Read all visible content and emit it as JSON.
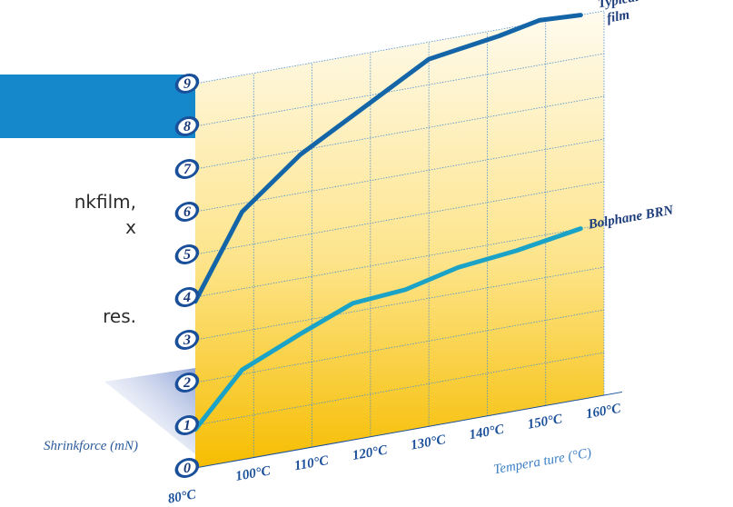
{
  "background_text": [
    "nkfilm,",
    "x",
    "res."
  ],
  "colors": {
    "banner": "#1588cc",
    "typical_film_line": "#1465a8",
    "bolphane_line": "#1aa3c6",
    "area_top": "#fff9e8",
    "area_bottom": "#f6bd00",
    "grid": "#4a8fd0",
    "tick_badge": "#1a4f9a"
  },
  "chart_data": {
    "type": "line",
    "title": "",
    "xlabel": "Tempera ture (°C)",
    "ylabel": "Shrinkforce (mN)",
    "categories": [
      "80°C",
      "100°C",
      "110°C",
      "120°C",
      "130°C",
      "140°C",
      "150°C",
      "160°C"
    ],
    "y_ticks": [
      "0",
      "1",
      "2",
      "3",
      "4",
      "5",
      "6",
      "7",
      "8",
      "9"
    ],
    "ylim": [
      0,
      9
    ],
    "grid": true,
    "x_positions": [
      0,
      1,
      2,
      3,
      4,
      5,
      6,
      7
    ],
    "series": [
      {
        "name": "Typical film",
        "label_lines": [
          "Typical",
          "film"
        ],
        "x": [
          0,
          0.8,
          1.8,
          4.0,
          5.2,
          5.9,
          6.6
        ],
        "values": [
          3.9,
          5.8,
          6.9,
          8.6,
          8.85,
          9.05,
          9.0
        ]
      },
      {
        "name": "Bolphane BRN",
        "label_lines": [
          "Bolphane BRN"
        ],
        "x": [
          0,
          0.8,
          1.8,
          2.7,
          3.6,
          4.5,
          5.5,
          6.6
        ],
        "values": [
          0.9,
          2.1,
          2.7,
          3.2,
          3.3,
          3.6,
          3.75,
          4.0
        ]
      }
    ]
  }
}
